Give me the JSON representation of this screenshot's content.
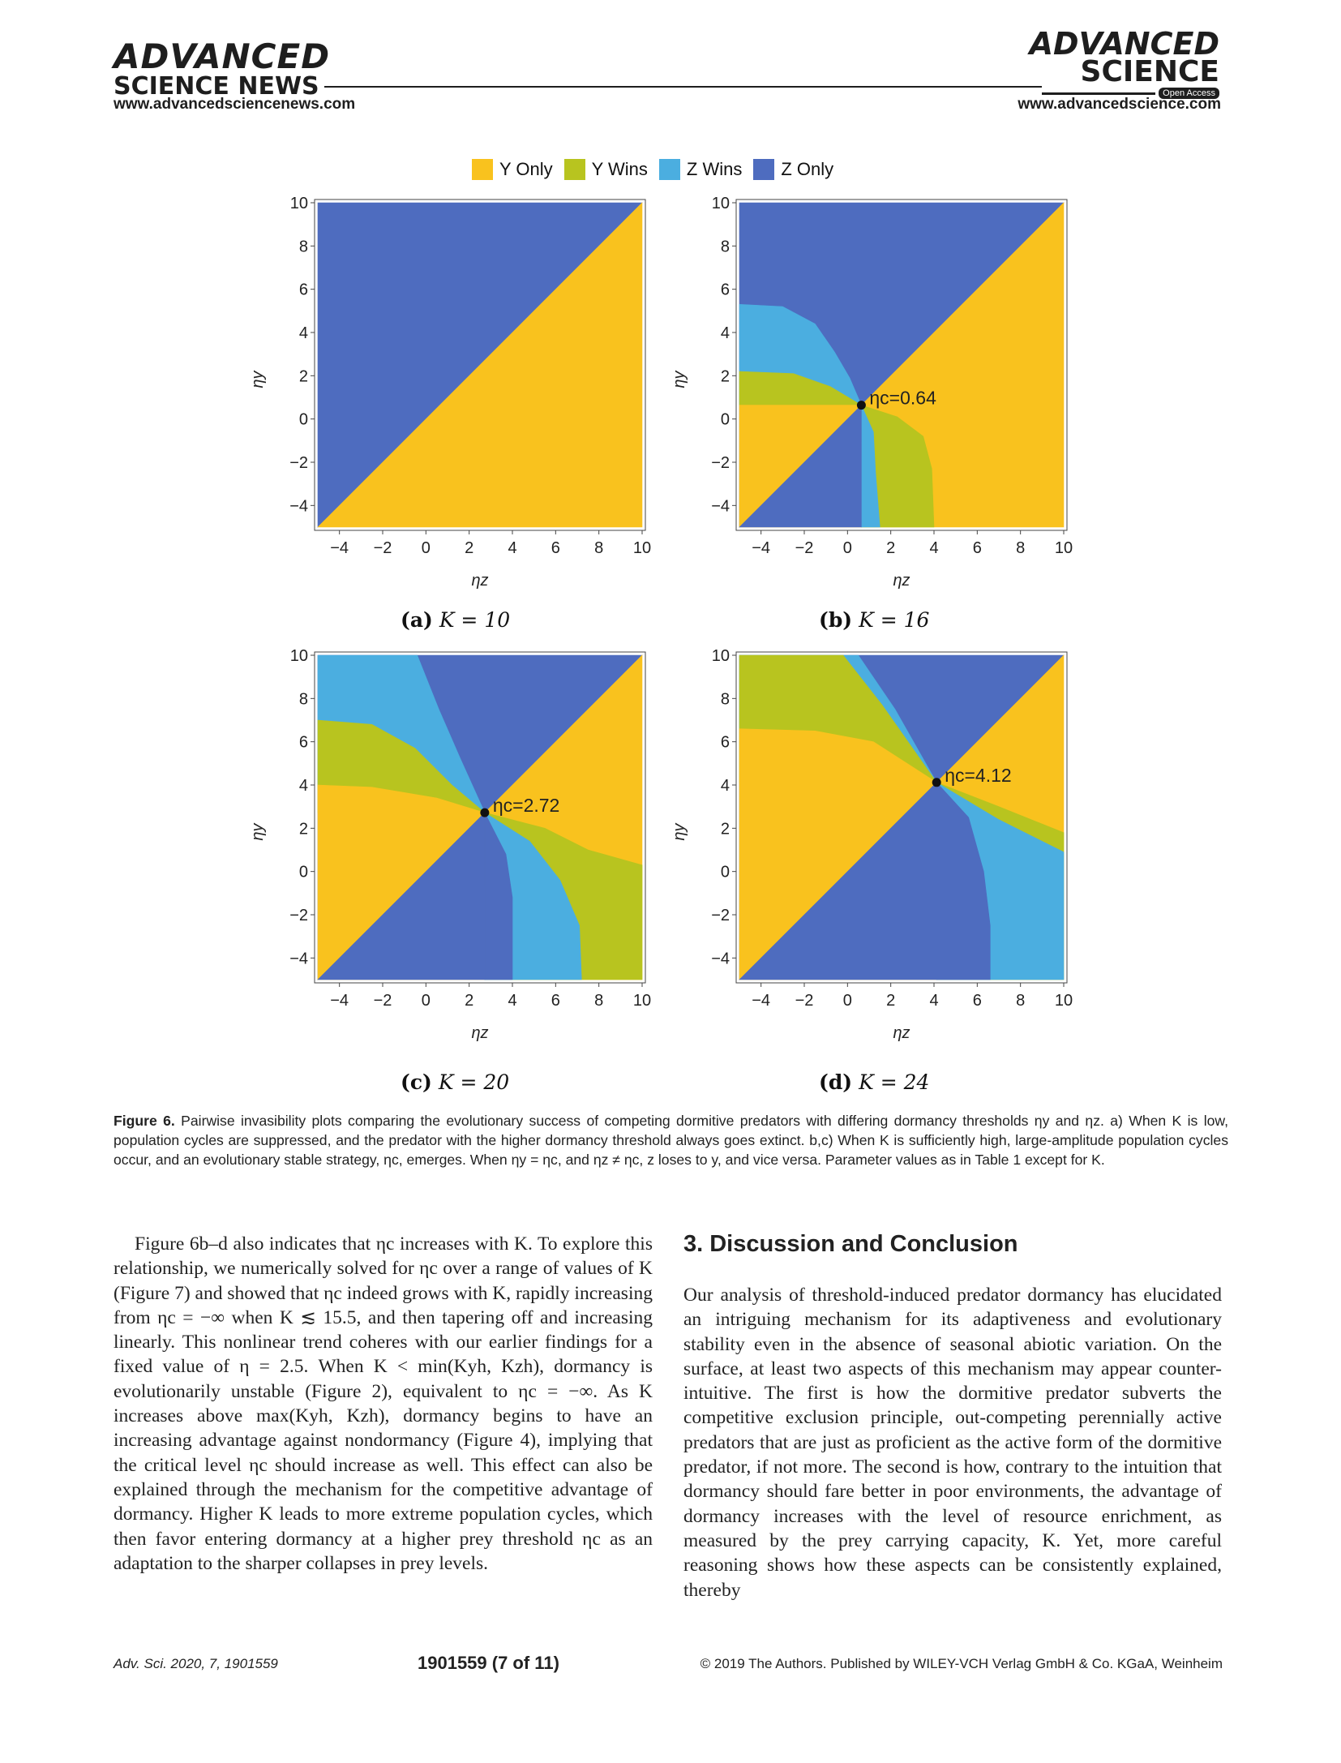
{
  "header": {
    "left_logo_line1": "ADVANCED",
    "left_logo_line2": "SCIENCE NEWS",
    "left_url": "www.advancedsciencenews.com",
    "right_logo_line1": "ADVANCED",
    "right_logo_line2": "SCIENCE",
    "open_access_badge": "Open Access",
    "right_url": "www.advancedscience.com"
  },
  "colors": {
    "y_only": "#f9c21e",
    "y_wins": "#b8c41f",
    "z_wins": "#4baee0",
    "z_only": "#4e6cbf"
  },
  "legend": [
    {
      "label": "Y Only",
      "color": "#f9c21e"
    },
    {
      "label": "Y Wins",
      "color": "#b8c41f"
    },
    {
      "label": "Z Wins",
      "color": "#4baee0"
    },
    {
      "label": "Z Only",
      "color": "#4e6cbf"
    }
  ],
  "chart_data": [
    {
      "type": "heatmap",
      "panel": "a",
      "xlabel": "ηz",
      "ylabel": "ηy",
      "xlim": [
        -5,
        10
      ],
      "ylim": [
        -5,
        10
      ],
      "xticks": [
        "−4",
        "−2",
        "0",
        "2",
        "4",
        "6",
        "8",
        "10"
      ],
      "yticks": [
        "−4",
        "−2",
        "0",
        "2",
        "4",
        "6",
        "8",
        "10"
      ],
      "regions": [
        {
          "category": "Z Only",
          "points": [
            [
              -5,
              -5
            ],
            [
              10,
              10
            ],
            [
              -5,
              10
            ]
          ]
        },
        {
          "category": "Y Only",
          "points": [
            [
              -5,
              -5
            ],
            [
              10,
              -5
            ],
            [
              10,
              10
            ]
          ]
        }
      ],
      "ess": null
    },
    {
      "type": "heatmap",
      "panel": "b",
      "xlabel": "ηz",
      "ylabel": "ηy",
      "xlim": [
        -5,
        10
      ],
      "ylim": [
        -5,
        10
      ],
      "xticks": [
        "−4",
        "−2",
        "0",
        "2",
        "4",
        "6",
        "8",
        "10"
      ],
      "yticks": [
        "−4",
        "−2",
        "0",
        "2",
        "4",
        "6",
        "8",
        "10"
      ],
      "regions": [
        {
          "category": "Z Only",
          "points": [
            [
              -5,
              -5
            ],
            [
              10,
              10
            ],
            [
              -5,
              10
            ]
          ]
        },
        {
          "category": "Z Wins",
          "points": [
            [
              -5,
              5.3
            ],
            [
              -3,
              5.2
            ],
            [
              -1.5,
              4.4
            ],
            [
              -0.6,
              3.1
            ],
            [
              0.1,
              1.9
            ],
            [
              0.64,
              0.64
            ],
            [
              -5,
              0.64
            ]
          ]
        },
        {
          "category": "Y Wins",
          "points": [
            [
              -5,
              2.2
            ],
            [
              -2.5,
              2.1
            ],
            [
              -0.8,
              1.5
            ],
            [
              0.64,
              0.64
            ],
            [
              -5,
              0.64
            ]
          ]
        },
        {
          "category": "Y Only",
          "points": [
            [
              -5,
              -5
            ],
            [
              0.64,
              0.64
            ],
            [
              -5,
              0.64
            ]
          ]
        },
        {
          "category": "Y Only",
          "points": [
            [
              -5,
              -5
            ],
            [
              10,
              -5
            ],
            [
              10,
              10
            ]
          ]
        },
        {
          "category": "Y Wins",
          "points": [
            [
              0.64,
              0.64
            ],
            [
              2.3,
              0.1
            ],
            [
              3.5,
              -0.8
            ],
            [
              3.9,
              -2.3
            ],
            [
              4.0,
              -5
            ],
            [
              0.64,
              -5
            ]
          ]
        },
        {
          "category": "Z Wins",
          "points": [
            [
              0.64,
              0.64
            ],
            [
              1.2,
              -0.6
            ],
            [
              1.3,
              -2.5
            ],
            [
              1.5,
              -5
            ],
            [
              0.64,
              -5
            ]
          ]
        },
        {
          "category": "Z Only",
          "points": [
            [
              -5,
              -5
            ],
            [
              0.64,
              0.64
            ],
            [
              0.64,
              -5
            ]
          ]
        }
      ],
      "ess": {
        "x": 0.64,
        "y": 0.64,
        "label": "ηc=0.64"
      }
    },
    {
      "type": "heatmap",
      "panel": "c",
      "xlabel": "ηz",
      "ylabel": "ηy",
      "xlim": [
        -5,
        10
      ],
      "ylim": [
        -5,
        10
      ],
      "xticks": [
        "−4",
        "−2",
        "0",
        "2",
        "4",
        "6",
        "8",
        "10"
      ],
      "yticks": [
        "−4",
        "−2",
        "0",
        "2",
        "4",
        "6",
        "8",
        "10"
      ],
      "regions": [
        {
          "category": "Z Only",
          "points": [
            [
              -5,
              -5
            ],
            [
              10,
              10
            ],
            [
              -5,
              10
            ]
          ]
        },
        {
          "category": "Z Wins",
          "points": [
            [
              -5,
              10
            ],
            [
              -0.4,
              10
            ],
            [
              0.6,
              7.5
            ],
            [
              1.6,
              5.2
            ],
            [
              2.72,
              2.72
            ],
            [
              -5,
              2.72
            ]
          ]
        },
        {
          "category": "Y Wins",
          "points": [
            [
              -5,
              7.0
            ],
            [
              -2.5,
              6.8
            ],
            [
              -0.5,
              5.7
            ],
            [
              1.2,
              4.0
            ],
            [
              2.72,
              2.72
            ],
            [
              -5,
              2.72
            ]
          ]
        },
        {
          "category": "Y Only",
          "points": [
            [
              -5,
              4.0
            ],
            [
              -2.5,
              3.9
            ],
            [
              0.5,
              3.4
            ],
            [
              2.72,
              2.72
            ],
            [
              -5,
              2.72
            ]
          ]
        },
        {
          "category": "Y Only",
          "points": [
            [
              -5,
              -5
            ],
            [
              2.72,
              2.72
            ],
            [
              -5,
              2.72
            ]
          ]
        },
        {
          "category": "Y Only",
          "points": [
            [
              -5,
              -5
            ],
            [
              10,
              -5
            ],
            [
              10,
              10
            ]
          ]
        },
        {
          "category": "Y Wins",
          "points": [
            [
              2.72,
              2.72
            ],
            [
              5.5,
              2.0
            ],
            [
              7.5,
              1.0
            ],
            [
              10,
              0.3
            ],
            [
              10,
              -5
            ],
            [
              2.72,
              -5
            ]
          ]
        },
        {
          "category": "Z Wins",
          "points": [
            [
              2.72,
              2.72
            ],
            [
              4.8,
              1.4
            ],
            [
              6.2,
              -0.4
            ],
            [
              7.1,
              -2.5
            ],
            [
              7.2,
              -5
            ],
            [
              2.72,
              -5
            ]
          ]
        },
        {
          "category": "Z Only",
          "points": [
            [
              2.72,
              2.72
            ],
            [
              3.7,
              0.8
            ],
            [
              4.0,
              -1.2
            ],
            [
              4.0,
              -5
            ],
            [
              2.72,
              -5
            ]
          ]
        },
        {
          "category": "Z Only",
          "points": [
            [
              -5,
              -5
            ],
            [
              2.72,
              2.72
            ],
            [
              2.72,
              -5
            ]
          ]
        }
      ],
      "ess": {
        "x": 2.72,
        "y": 2.72,
        "label": "ηc=2.72"
      }
    },
    {
      "type": "heatmap",
      "panel": "d",
      "xlabel": "ηz",
      "ylabel": "ηy",
      "xlim": [
        -5,
        10
      ],
      "ylim": [
        -5,
        10
      ],
      "xticks": [
        "−4",
        "−2",
        "0",
        "2",
        "4",
        "6",
        "8",
        "10"
      ],
      "yticks": [
        "−4",
        "−2",
        "0",
        "2",
        "4",
        "6",
        "8",
        "10"
      ],
      "regions": [
        {
          "category": "Z Only",
          "points": [
            [
              -5,
              -5
            ],
            [
              10,
              10
            ],
            [
              -5,
              10
            ]
          ]
        },
        {
          "category": "Z Wins",
          "points": [
            [
              -5,
              10
            ],
            [
              0.5,
              10
            ],
            [
              2.2,
              7.5
            ],
            [
              4.12,
              4.12
            ],
            [
              -5,
              4.12
            ]
          ]
        },
        {
          "category": "Y Wins",
          "points": [
            [
              -5,
              10
            ],
            [
              -0.2,
              10
            ],
            [
              1.6,
              7.7
            ],
            [
              4.12,
              4.12
            ],
            [
              -5,
              4.12
            ]
          ]
        },
        {
          "category": "Y Only",
          "points": [
            [
              -5,
              6.6
            ],
            [
              -1.5,
              6.5
            ],
            [
              1.2,
              6.0
            ],
            [
              4.12,
              4.12
            ],
            [
              -5,
              4.12
            ]
          ]
        },
        {
          "category": "Y Only",
          "points": [
            [
              -5,
              -5
            ],
            [
              4.12,
              4.12
            ],
            [
              -5,
              4.12
            ]
          ]
        },
        {
          "category": "Y Only",
          "points": [
            [
              -5,
              -5
            ],
            [
              10,
              -5
            ],
            [
              10,
              10
            ]
          ]
        },
        {
          "category": "Y Wins",
          "points": [
            [
              4.12,
              4.12
            ],
            [
              7,
              3.0
            ],
            [
              10,
              1.8
            ],
            [
              10,
              -5
            ],
            [
              4.12,
              -5
            ]
          ]
        },
        {
          "category": "Z Wins",
          "points": [
            [
              4.12,
              4.12
            ],
            [
              7,
              2.4
            ],
            [
              10,
              0.9
            ],
            [
              10,
              -5
            ],
            [
              4.12,
              -5
            ]
          ]
        },
        {
          "category": "Z Only",
          "points": [
            [
              4.12,
              4.12
            ],
            [
              5.6,
              2.5
            ],
            [
              6.3,
              0.0
            ],
            [
              6.6,
              -2.5
            ],
            [
              6.6,
              -5
            ],
            [
              4.12,
              -5
            ]
          ]
        },
        {
          "category": "Z Only",
          "points": [
            [
              -5,
              -5
            ],
            [
              4.12,
              4.12
            ],
            [
              4.12,
              -5
            ]
          ]
        }
      ],
      "ess": {
        "x": 4.12,
        "y": 4.12,
        "label": "ηc=4.12"
      }
    }
  ],
  "subcaptions": [
    {
      "letter": "(a)",
      "text": "K = 10"
    },
    {
      "letter": "(b)",
      "text": "K = 16"
    },
    {
      "letter": "(c)",
      "text": "K = 20"
    },
    {
      "letter": "(d)",
      "text": "K = 24"
    }
  ],
  "figure_caption": {
    "label": "Figure 6.",
    "text": "Pairwise invasibility plots comparing the evolutionary success of competing dormitive predators with differing dormancy thresholds ηy and ηz. a) When K is low, population cycles are suppressed, and the predator with the higher dormancy threshold always goes extinct. b,c) When K is sufficiently high, large-amplitude population cycles occur, and an evolutionary stable strategy, ηc, emerges. When ηy = ηc, and ηz ≠ ηc, z loses to y, and vice versa. Parameter values as in Table 1 except for K."
  },
  "body_left": {
    "paragraph": "Figure 6b–d also indicates that ηc increases with K. To explore this relationship, we numerically solved for ηc over a range of values of K (Figure 7) and showed that ηc indeed grows with K, rapidly increasing from ηc = −∞ when K ≲ 15.5, and then tapering off and increasing linearly. This nonlinear trend coheres with our earlier findings for a fixed value of η = 2.5. When K < min(Kyh, Kzh), dormancy is evolutionarily unstable (Figure 2), equivalent to ηc = −∞. As K increases above max(Kyh, Kzh), dormancy begins to have an increasing advantage against nondormancy (Figure 4), implying that the critical level ηc should increase as well. This effect can also be explained through the mechanism for the competitive advantage of dormancy. Higher K leads to more extreme population cycles, which then favor entering dormancy at a higher prey threshold ηc as an adaptation to the sharper collapses in prey levels."
  },
  "section": {
    "heading": "3. Discussion and Conclusion",
    "paragraph": "Our analysis of threshold-induced predator dormancy has elucidated an intriguing mechanism for its adaptiveness and evolutionary stability even in the absence of seasonal abiotic variation. On the surface, at least two aspects of this mechanism may appear counter-intuitive. The first is how the dormitive predator subverts the competitive exclusion principle, out-competing perennially active predators that are just as proficient as the active form of the dormitive predator, if not more. The second is how, contrary to the intuition that dormancy should fare better in poor environments, the advantage of dormancy increases with the level of resource enrichment, as measured by the prey carrying capacity, K. Yet, more careful reasoning shows how these aspects can be consistently explained, thereby"
  },
  "footer": {
    "left": "Adv. Sci. 2020, 7, 1901559",
    "center": "1901559 (7 of 11)",
    "right": "© 2019 The Authors. Published by WILEY-VCH Verlag GmbH & Co. KGaA, Weinheim"
  }
}
